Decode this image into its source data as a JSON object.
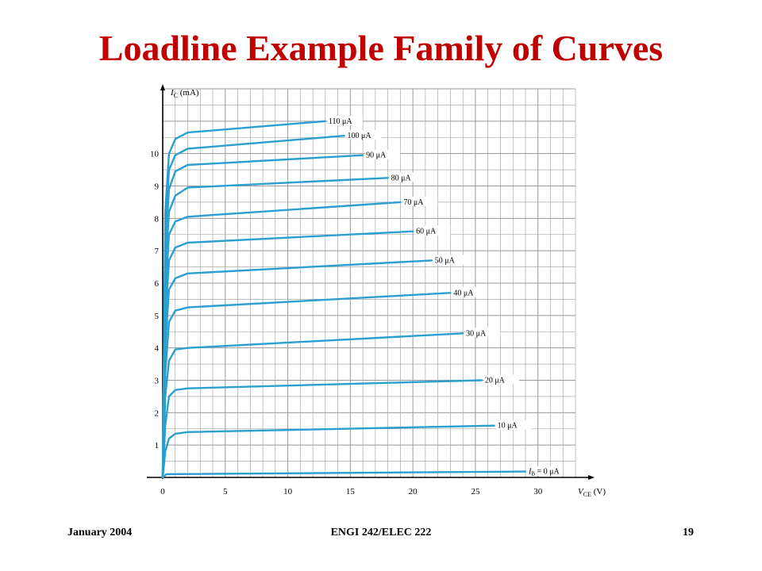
{
  "slide": {
    "title": "Loadline Example Family of Curves"
  },
  "footer": {
    "date": "January 2004",
    "course": "ENGI 242/ELEC 222",
    "page": "19"
  },
  "colors": {
    "title": "#c00000",
    "curve": "#2a9fd0",
    "grid": "#9a9a9a"
  },
  "chart_data": {
    "type": "line",
    "xlabel": "V_CE (V)",
    "ylabel": "I_C (mA)",
    "xlim": [
      0,
      33
    ],
    "ylim": [
      0,
      12
    ],
    "x_ticks": [
      "0",
      "5",
      "10",
      "15",
      "20",
      "25",
      "30"
    ],
    "y_ticks": [
      "1",
      "2",
      "3",
      "4",
      "5",
      "6",
      "7",
      "8",
      "9",
      "10"
    ],
    "grid": true,
    "series": [
      {
        "name": "I_B = 0 μA",
        "label_main": "I",
        "label_sub": "B",
        "label_rest": " = 0 μA",
        "x": [
          0,
          0.3,
          29
        ],
        "y": [
          0,
          0.1,
          0.18
        ]
      },
      {
        "name": "10 μA",
        "x": [
          0,
          0.2,
          0.5,
          1,
          2,
          26.5
        ],
        "y": [
          0,
          0.8,
          1.2,
          1.35,
          1.4,
          1.6
        ]
      },
      {
        "name": "20 μA",
        "x": [
          0,
          0.2,
          0.5,
          1,
          2,
          25.5
        ],
        "y": [
          0,
          1.6,
          2.5,
          2.7,
          2.75,
          3.0
        ]
      },
      {
        "name": "30 μA",
        "x": [
          0,
          0.2,
          0.5,
          1,
          2,
          24
        ],
        "y": [
          0,
          2.5,
          3.6,
          3.95,
          4.0,
          4.45
        ]
      },
      {
        "name": "40 μA",
        "x": [
          0,
          0.2,
          0.5,
          1,
          2,
          23
        ],
        "y": [
          0,
          3.2,
          4.8,
          5.15,
          5.25,
          5.7
        ]
      },
      {
        "name": "50 μA",
        "x": [
          0,
          0.2,
          0.5,
          1,
          2,
          21.5
        ],
        "y": [
          0,
          4.0,
          5.8,
          6.15,
          6.3,
          6.7
        ]
      },
      {
        "name": "60 μA",
        "x": [
          0,
          0.2,
          0.5,
          1,
          2,
          20
        ],
        "y": [
          0,
          4.8,
          6.7,
          7.1,
          7.25,
          7.6
        ]
      },
      {
        "name": "70 μA",
        "x": [
          0,
          0.2,
          0.5,
          1,
          2,
          19
        ],
        "y": [
          0,
          5.6,
          7.5,
          7.9,
          8.05,
          8.5
        ]
      },
      {
        "name": "80 μA",
        "x": [
          0,
          0.2,
          0.5,
          1,
          2,
          18
        ],
        "y": [
          0,
          6.3,
          8.2,
          8.7,
          8.95,
          9.25
        ]
      },
      {
        "name": "90 μA",
        "x": [
          0,
          0.2,
          0.5,
          1,
          2,
          16
        ],
        "y": [
          0,
          7.0,
          8.9,
          9.45,
          9.65,
          9.95
        ]
      },
      {
        "name": "100 μA",
        "x": [
          0,
          0.2,
          0.5,
          1,
          2,
          14.5
        ],
        "y": [
          0,
          7.6,
          9.5,
          9.95,
          10.15,
          10.55
        ]
      },
      {
        "name": "110 μA",
        "x": [
          0,
          0.2,
          0.5,
          1,
          2,
          13
        ],
        "y": [
          0,
          8.2,
          10.0,
          10.45,
          10.65,
          11.0
        ]
      }
    ]
  }
}
